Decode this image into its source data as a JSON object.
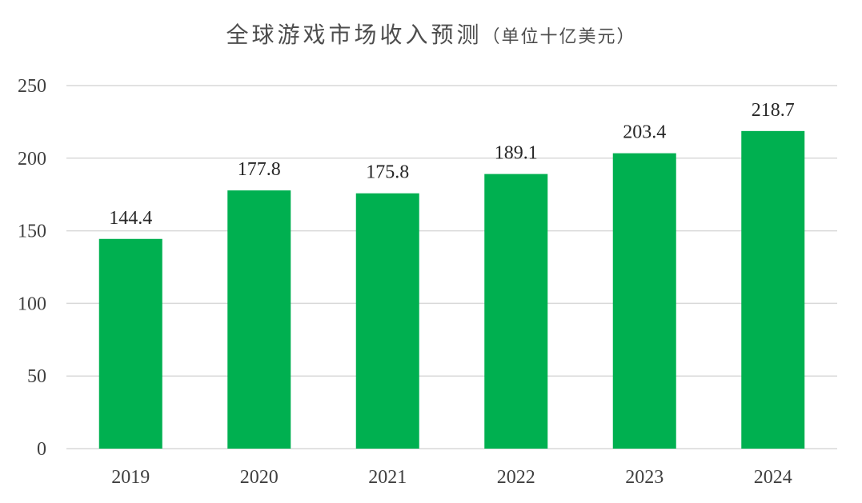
{
  "chart_data": {
    "type": "bar",
    "title": "全球游戏市场收入预测",
    "subtitle": "（单位十亿美元）",
    "categories": [
      "2019",
      "2020",
      "2021",
      "2022",
      "2023",
      "2024"
    ],
    "values": [
      144.4,
      177.8,
      175.8,
      189.1,
      203.4,
      218.7
    ],
    "data_labels": [
      "144.4",
      "177.8",
      "175.8",
      "189.1",
      "203.4",
      "218.7"
    ],
    "xlabel": "",
    "ylabel": "",
    "ylim": [
      0,
      250
    ],
    "yticks": [
      0,
      50,
      100,
      150,
      200,
      250
    ],
    "grid": true,
    "legend": "none",
    "bar_color": "#00b050"
  }
}
